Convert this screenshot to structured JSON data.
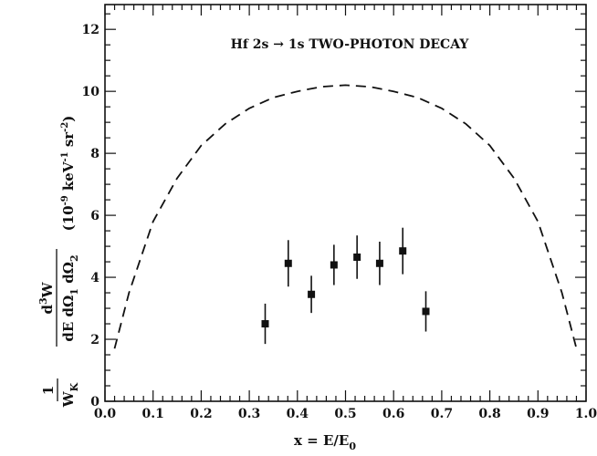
{
  "chart_data": {
    "type": "scatter",
    "title": "Hf  2s → 1s  TWO-PHOTON DECAY",
    "xlabel": "x = E/E",
    "xlabel_sub": "0",
    "ylabel": {
      "prefactor_num": "1",
      "prefactor_den": "W",
      "prefactor_den_sub": "K",
      "deriv_num": "d",
      "deriv_num_sup": "3",
      "deriv_num_tail": "W",
      "deriv_den": "dE dΩ",
      "deriv_den_sub1": "1",
      "deriv_den_mid": " dΩ",
      "deriv_den_sub2": "2",
      "units": "(10",
      "units_exp1": "-9",
      "units_mid": " keV",
      "units_exp2": "-1",
      "units_mid2": " sr",
      "units_exp3": "-2",
      "units_close": ")"
    },
    "xlim": [
      0.0,
      1.0
    ],
    "ylim": [
      0,
      12.8
    ],
    "xticks": [
      "0.0",
      "0.1",
      "0.2",
      "0.3",
      "0.4",
      "0.5",
      "0.6",
      "0.7",
      "0.8",
      "0.9",
      "1.0"
    ],
    "yticks": [
      "0",
      "2",
      "4",
      "6",
      "8",
      "10",
      "12"
    ],
    "series": [
      {
        "style": "dashed-line",
        "x": [
          0.02,
          0.05,
          0.1,
          0.15,
          0.2,
          0.25,
          0.3,
          0.35,
          0.4,
          0.45,
          0.5,
          0.55,
          0.6,
          0.65,
          0.7,
          0.75,
          0.8,
          0.85,
          0.9,
          0.95,
          0.98
        ],
        "y": [
          1.7,
          3.5,
          5.8,
          7.2,
          8.25,
          8.95,
          9.45,
          9.8,
          10.0,
          10.15,
          10.2,
          10.15,
          10.0,
          9.8,
          9.45,
          8.95,
          8.25,
          7.2,
          5.8,
          3.5,
          1.7
        ]
      },
      {
        "style": "points-with-errorbars",
        "x": [
          0.333,
          0.381,
          0.429,
          0.476,
          0.524,
          0.571,
          0.619,
          0.667
        ],
        "y": [
          2.5,
          4.45,
          3.45,
          4.4,
          4.65,
          4.45,
          4.85,
          2.9
        ],
        "yerr": [
          0.65,
          0.75,
          0.6,
          0.65,
          0.7,
          0.7,
          0.75,
          0.65
        ]
      }
    ],
    "grid": false,
    "legend": "none"
  }
}
